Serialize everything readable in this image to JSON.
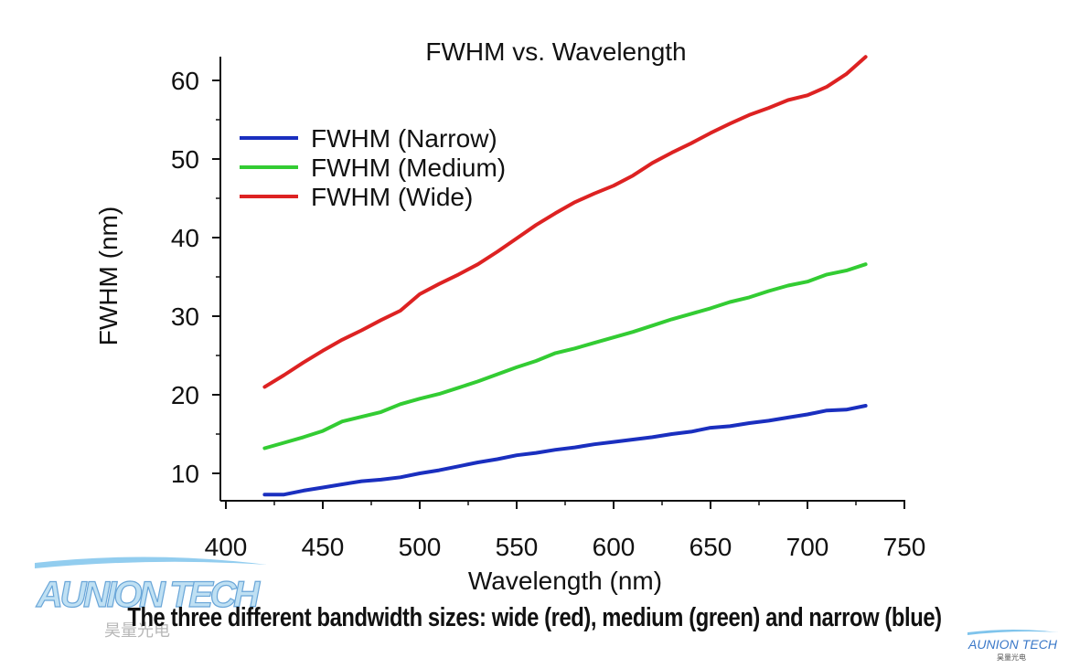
{
  "chart_data": {
    "type": "line",
    "title": "FWHM vs. Wavelength",
    "xlabel": "Wavelength (nm)",
    "ylabel": "FWHM (nm)",
    "xlim": [
      400,
      750
    ],
    "ylim": [
      6.5,
      63
    ],
    "x_ticks": [
      400,
      450,
      500,
      550,
      600,
      650,
      700,
      750
    ],
    "y_ticks": [
      10,
      20,
      30,
      40,
      50,
      60
    ],
    "grid": false,
    "legend_position": "top-left",
    "x": [
      420,
      430,
      440,
      450,
      460,
      470,
      480,
      490,
      500,
      510,
      520,
      530,
      540,
      550,
      560,
      570,
      580,
      590,
      600,
      610,
      620,
      630,
      640,
      650,
      660,
      670,
      680,
      690,
      700,
      710,
      720,
      730
    ],
    "series": [
      {
        "name": "FWHM (Narrow)",
        "color": "#1a2fbf",
        "values": [
          7.3,
          7.3,
          7.8,
          8.2,
          8.6,
          9.0,
          9.2,
          9.5,
          10.0,
          10.4,
          10.9,
          11.4,
          11.8,
          12.3,
          12.6,
          13.0,
          13.3,
          13.7,
          14.0,
          14.3,
          14.6,
          15.0,
          15.3,
          15.8,
          16.0,
          16.4,
          16.7,
          17.1,
          17.5,
          18.0,
          18.1,
          18.6
        ]
      },
      {
        "name": "FWHM (Medium)",
        "color": "#33cc33",
        "values": [
          13.2,
          13.9,
          14.6,
          15.4,
          16.6,
          17.2,
          17.8,
          18.8,
          19.5,
          20.1,
          20.9,
          21.7,
          22.6,
          23.5,
          24.3,
          25.3,
          25.9,
          26.6,
          27.3,
          28.0,
          28.8,
          29.6,
          30.3,
          31.0,
          31.8,
          32.4,
          33.2,
          33.9,
          34.4,
          35.3,
          35.8,
          36.6
        ]
      },
      {
        "name": "FWHM (Wide)",
        "color": "#dd2222",
        "values": [
          21.0,
          22.5,
          24.1,
          25.6,
          27.0,
          28.2,
          29.5,
          30.7,
          32.8,
          34.1,
          35.3,
          36.6,
          38.2,
          39.9,
          41.6,
          43.1,
          44.5,
          45.6,
          46.6,
          47.9,
          49.5,
          50.8,
          52.0,
          53.3,
          54.5,
          55.6,
          56.5,
          57.5,
          58.1,
          59.2,
          60.8,
          63.0
        ]
      }
    ]
  },
  "caption": "The three different bandwidth sizes: wide (red), medium (green) and narrow (blue)",
  "logo": {
    "brand": "AUNION TECH",
    "subtitle": "昊量光电"
  }
}
